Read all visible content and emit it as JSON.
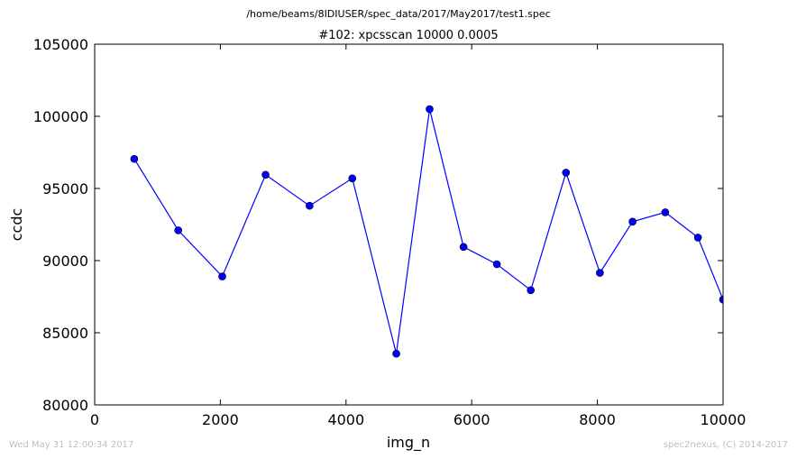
{
  "figure": {
    "suptitle": "/home/beams/8IDIUSER/spec_data/2017/May2017/test1.spec",
    "footer_left": "Wed May 31 12:00:34 2017",
    "footer_right": "spec2nexus, (C) 2014-2017"
  },
  "chart_data": {
    "type": "line",
    "title": "#102: xpcsscan 10000 0.0005",
    "xlabel": "img_n",
    "ylabel": "ccdc",
    "xlim": [
      0,
      10000
    ],
    "ylim": [
      80000,
      105000
    ],
    "xticks": [
      0,
      2000,
      4000,
      6000,
      8000,
      10000
    ],
    "yticks": [
      80000,
      85000,
      90000,
      95000,
      100000,
      105000
    ],
    "grid": false,
    "color": "#0000ff",
    "marker": "circle",
    "series": [
      {
        "x": [
          630,
          1330,
          2030,
          2720,
          3420,
          4100,
          4800,
          5330,
          5870,
          6400,
          6940,
          7500,
          8040,
          8560,
          9080,
          9600,
          10000
        ],
        "y": [
          97050,
          92100,
          88900,
          95950,
          93800,
          95700,
          83550,
          100500,
          90950,
          89750,
          87950,
          96100,
          89150,
          92700,
          93350,
          91600,
          87300
        ]
      }
    ]
  }
}
